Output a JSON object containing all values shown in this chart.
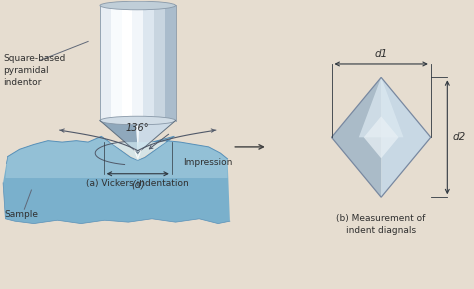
{
  "background_color": "#e6ddd0",
  "labels": {
    "square_based": "Square-based\npyramidal\nindentor",
    "angle": "136°",
    "d_label": "(d)",
    "vickers": "(a) Vickers indentation",
    "impression": "Impression",
    "sample": "Sample",
    "d1": "d1",
    "d2": "d2",
    "measurement": "(b) Measurement of\nindent diagnals"
  },
  "colors": {
    "cyl_grad": [
      "#e8eef4",
      "#f8fbfd",
      "#ffffff",
      "#f2f6fa",
      "#dce6ef",
      "#c8d5e0",
      "#aabccc"
    ],
    "cone_left": "#8fa8bc",
    "cone_right": "#ccdae6",
    "cone_center": "#f0f8ff",
    "sample_main": "#7ab0cc",
    "sample_light": "#a8cfe0",
    "sample_dark": "#5890b8",
    "indent_fill": "#b8d8e8",
    "bump_fill": "#c0d8e8",
    "diamond_left": "#aabbc8",
    "diamond_right": "#c8d8e4",
    "diamond_highlight": "#e8f0f5",
    "line_color": "#505868",
    "dim_color": "#303840",
    "text_color": "#303030"
  }
}
